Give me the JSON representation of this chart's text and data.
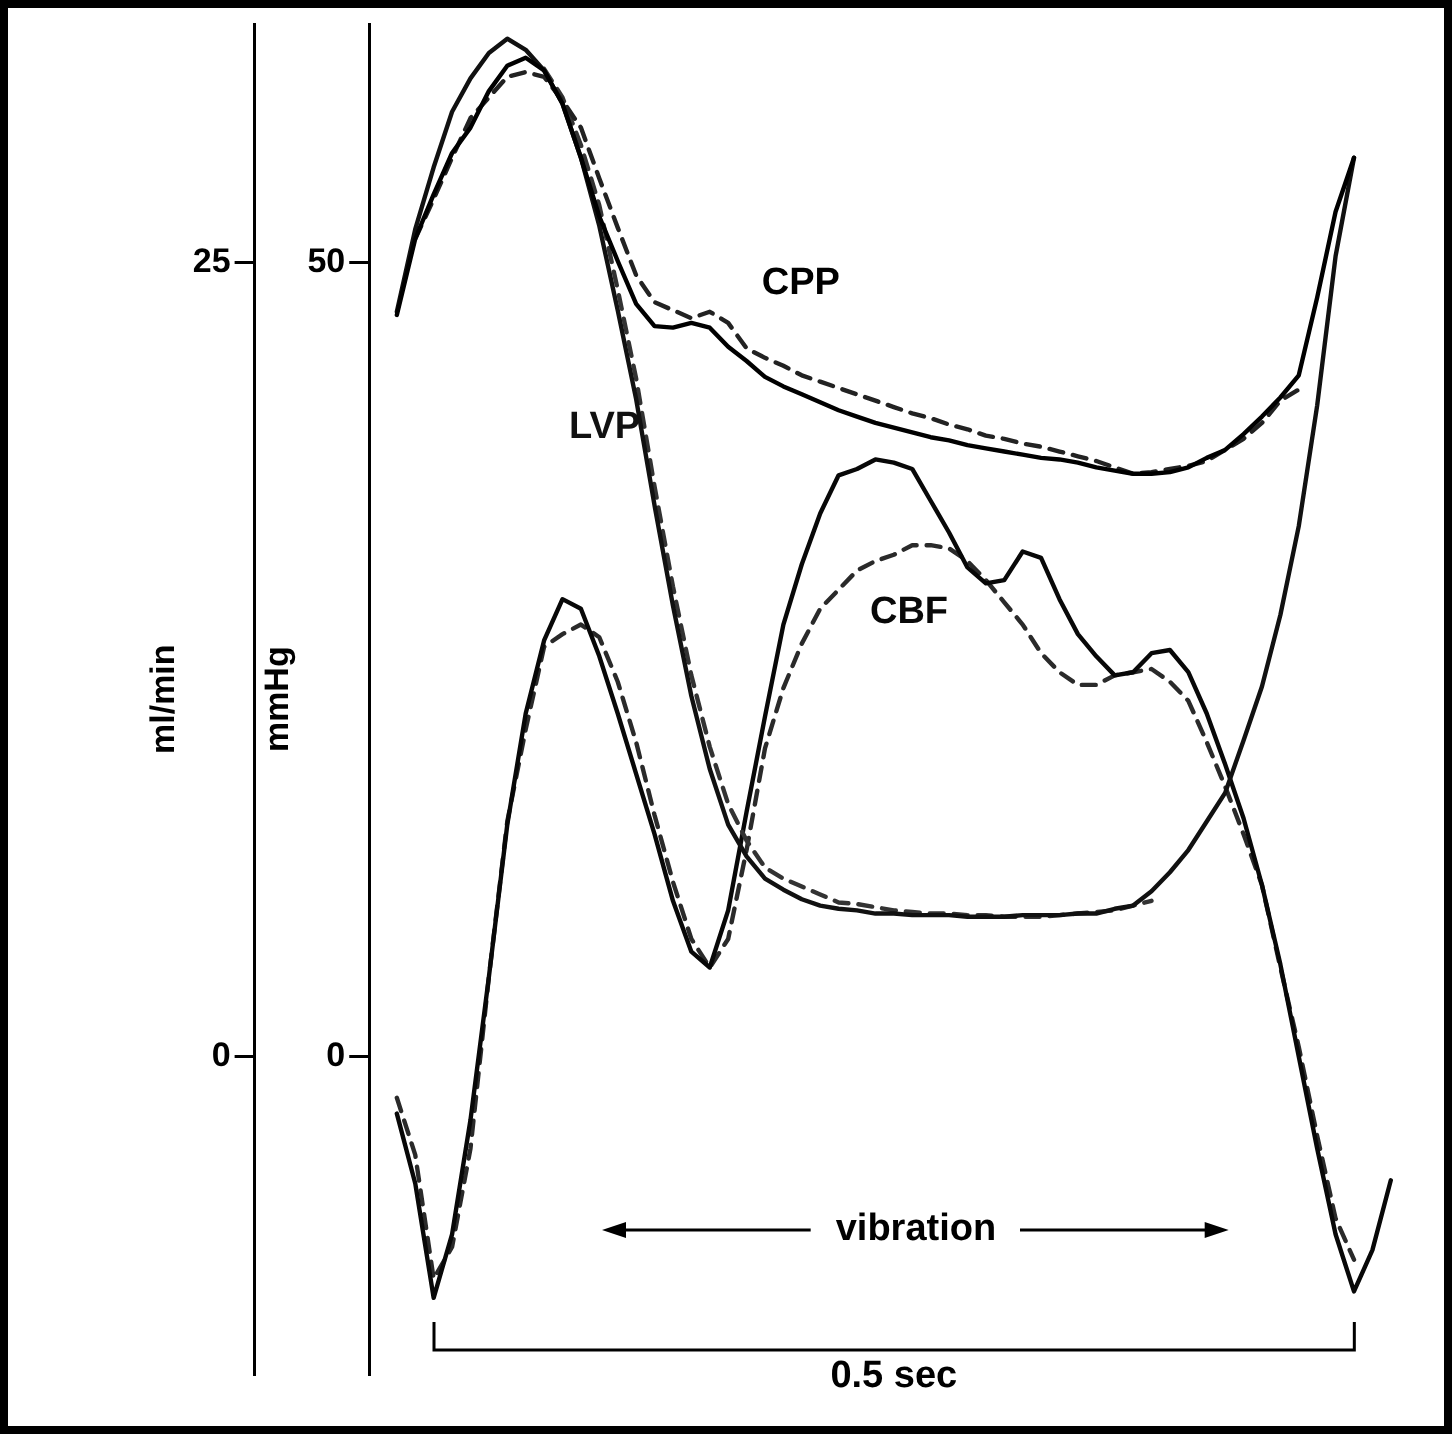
{
  "chart_data": {
    "type": "line",
    "ylabel": "ml/min",
    "y2label": "mmHg",
    "categories": [
      null,
      null,
      null,
      null,
      null,
      null,
      null,
      null,
      null,
      null,
      null,
      null,
      null,
      null,
      null,
      null,
      null,
      null,
      null,
      null,
      null,
      null,
      null,
      null,
      null,
      null,
      null,
      null,
      null,
      null,
      null,
      null,
      null,
      null,
      null,
      null,
      null,
      null,
      null,
      null,
      null,
      null,
      null,
      null,
      null,
      null,
      null,
      null,
      null,
      null,
      null,
      null,
      null,
      null,
      null,
      null
    ],
    "ylim": [
      -10,
      32.5
    ],
    "yticks": [
      0,
      25
    ],
    "y2lim": [
      -20,
      65
    ],
    "y2ticks": [
      0,
      50
    ],
    "tick_labels": "y",
    "grid": false,
    "legend": false,
    "marker": "none",
    "annotations": [
      "vibration",
      "0.5 sec"
    ],
    "series": [
      {
        "name": "CPP",
        "color": "#000000",
        "line_style": "solid",
        "axis": "y2",
        "values": [
          null,
          46.7,
          51.5,
          54.3,
          56.9,
          58.5,
          60.8,
          62.4,
          62.9,
          62.1,
          60.0,
          56.6,
          52.9,
          50.1,
          47.4,
          46.0,
          45.9,
          46.2,
          45.9,
          44.7,
          43.8,
          42.8,
          42.2,
          41.7,
          41.2,
          40.7,
          40.3,
          39.9,
          39.6,
          39.3,
          39.0,
          38.8,
          38.5,
          38.3,
          38.1,
          37.9,
          37.7,
          37.6,
          37.4,
          37.1,
          36.9,
          36.7,
          36.7,
          36.8,
          37.1,
          37.7,
          38.2,
          39.2,
          40.3,
          41.5,
          42.9,
          47.8,
          53.2,
          56.6,
          null,
          null
        ]
      },
      {
        "color": "#222222",
        "line_style": "dashed",
        "axis": "y2",
        "values": [
          null,
          null,
          51.5,
          54.0,
          56.6,
          59.1,
          60.4,
          61.7,
          62.0,
          61.7,
          60.2,
          58.5,
          55.3,
          52.2,
          49.2,
          47.5,
          47.0,
          46.5,
          46.9,
          46.2,
          44.6,
          44.0,
          43.5,
          42.9,
          42.5,
          42.1,
          41.7,
          41.3,
          40.9,
          40.5,
          40.2,
          39.8,
          39.5,
          39.1,
          38.9,
          38.6,
          38.4,
          38.1,
          37.8,
          37.5,
          37.1,
          36.7,
          36.8,
          37.0,
          37.2,
          37.5,
          38.2,
          38.9,
          39.9,
          41.3,
          42.0,
          null,
          null,
          null,
          null,
          null
        ]
      },
      {
        "name": "LVP",
        "color": "#111111",
        "line_style": "solid",
        "axis": "y2",
        "values": [
          null,
          46.9,
          52.1,
          56.0,
          59.5,
          61.6,
          63.2,
          64.1,
          63.4,
          62.1,
          60.0,
          56.6,
          52.3,
          47.0,
          41.4,
          34.7,
          28.4,
          22.7,
          18.1,
          14.6,
          12.6,
          11.2,
          10.5,
          9.9,
          9.5,
          9.3,
          9.2,
          9.0,
          9.0,
          8.9,
          8.9,
          8.9,
          8.8,
          8.8,
          8.8,
          8.9,
          8.9,
          8.9,
          9.0,
          9.0,
          9.3,
          9.5,
          10.4,
          11.6,
          13.0,
          14.8,
          16.6,
          19.9,
          23.3,
          27.8,
          33.4,
          41.0,
          50.4,
          56.6,
          null,
          null
        ]
      },
      {
        "color": "#333333",
        "line_style": "dashed",
        "axis": "y2",
        "values": [
          null,
          null,
          null,
          null,
          null,
          null,
          null,
          null,
          null,
          62.2,
          60.4,
          57.4,
          53.6,
          48.3,
          42.7,
          35.9,
          29.6,
          24.0,
          19.5,
          15.9,
          13.6,
          11.9,
          11.2,
          10.7,
          10.2,
          9.7,
          9.6,
          9.4,
          9.2,
          9.1,
          9.0,
          9.0,
          8.9,
          8.9,
          8.8,
          8.8,
          8.8,
          8.9,
          9.0,
          9.1,
          9.2,
          9.5,
          9.8,
          null,
          null,
          null,
          null,
          null,
          null,
          null,
          null,
          null,
          null,
          null,
          null,
          null
        ]
      },
      {
        "name": "CBF",
        "color": "#080808",
        "line_style": "solid",
        "values": [
          null,
          -1.8,
          -4.0,
          -7.6,
          -5.6,
          -2.0,
          2.5,
          7.3,
          10.8,
          13.1,
          14.4,
          14.1,
          12.6,
          10.8,
          8.9,
          7.0,
          4.9,
          3.3,
          2.8,
          4.6,
          7.7,
          10.7,
          13.6,
          15.5,
          17.1,
          18.3,
          18.5,
          18.8,
          18.7,
          18.5,
          17.5,
          16.5,
          15.4,
          14.9,
          15.0,
          15.9,
          15.7,
          14.4,
          13.3,
          12.6,
          12.0,
          12.1,
          12.7,
          12.8,
          12.1,
          10.8,
          9.2,
          7.5,
          5.4,
          2.9,
          0.0,
          -2.9,
          -5.6,
          -7.4,
          -6.1,
          -3.9
        ]
      },
      {
        "color": "#2a2a2a",
        "line_style": "dashed",
        "values": [
          null,
          -1.3,
          -3.1,
          -7.0,
          -6.0,
          -2.9,
          2.5,
          7.4,
          10.3,
          12.9,
          13.3,
          13.6,
          13.2,
          11.8,
          9.9,
          7.6,
          5.5,
          3.7,
          2.8,
          3.7,
          6.5,
          9.7,
          11.6,
          13.0,
          14.1,
          14.7,
          15.3,
          15.6,
          15.8,
          16.1,
          16.1,
          16.0,
          15.6,
          15.0,
          14.3,
          13.6,
          12.7,
          12.1,
          11.7,
          11.7,
          12.0,
          12.1,
          12.2,
          11.8,
          11.2,
          9.9,
          8.5,
          7.0,
          5.4,
          2.8,
          0.3,
          -2.5,
          -5.1,
          -6.4,
          null,
          null
        ]
      }
    ]
  }
}
